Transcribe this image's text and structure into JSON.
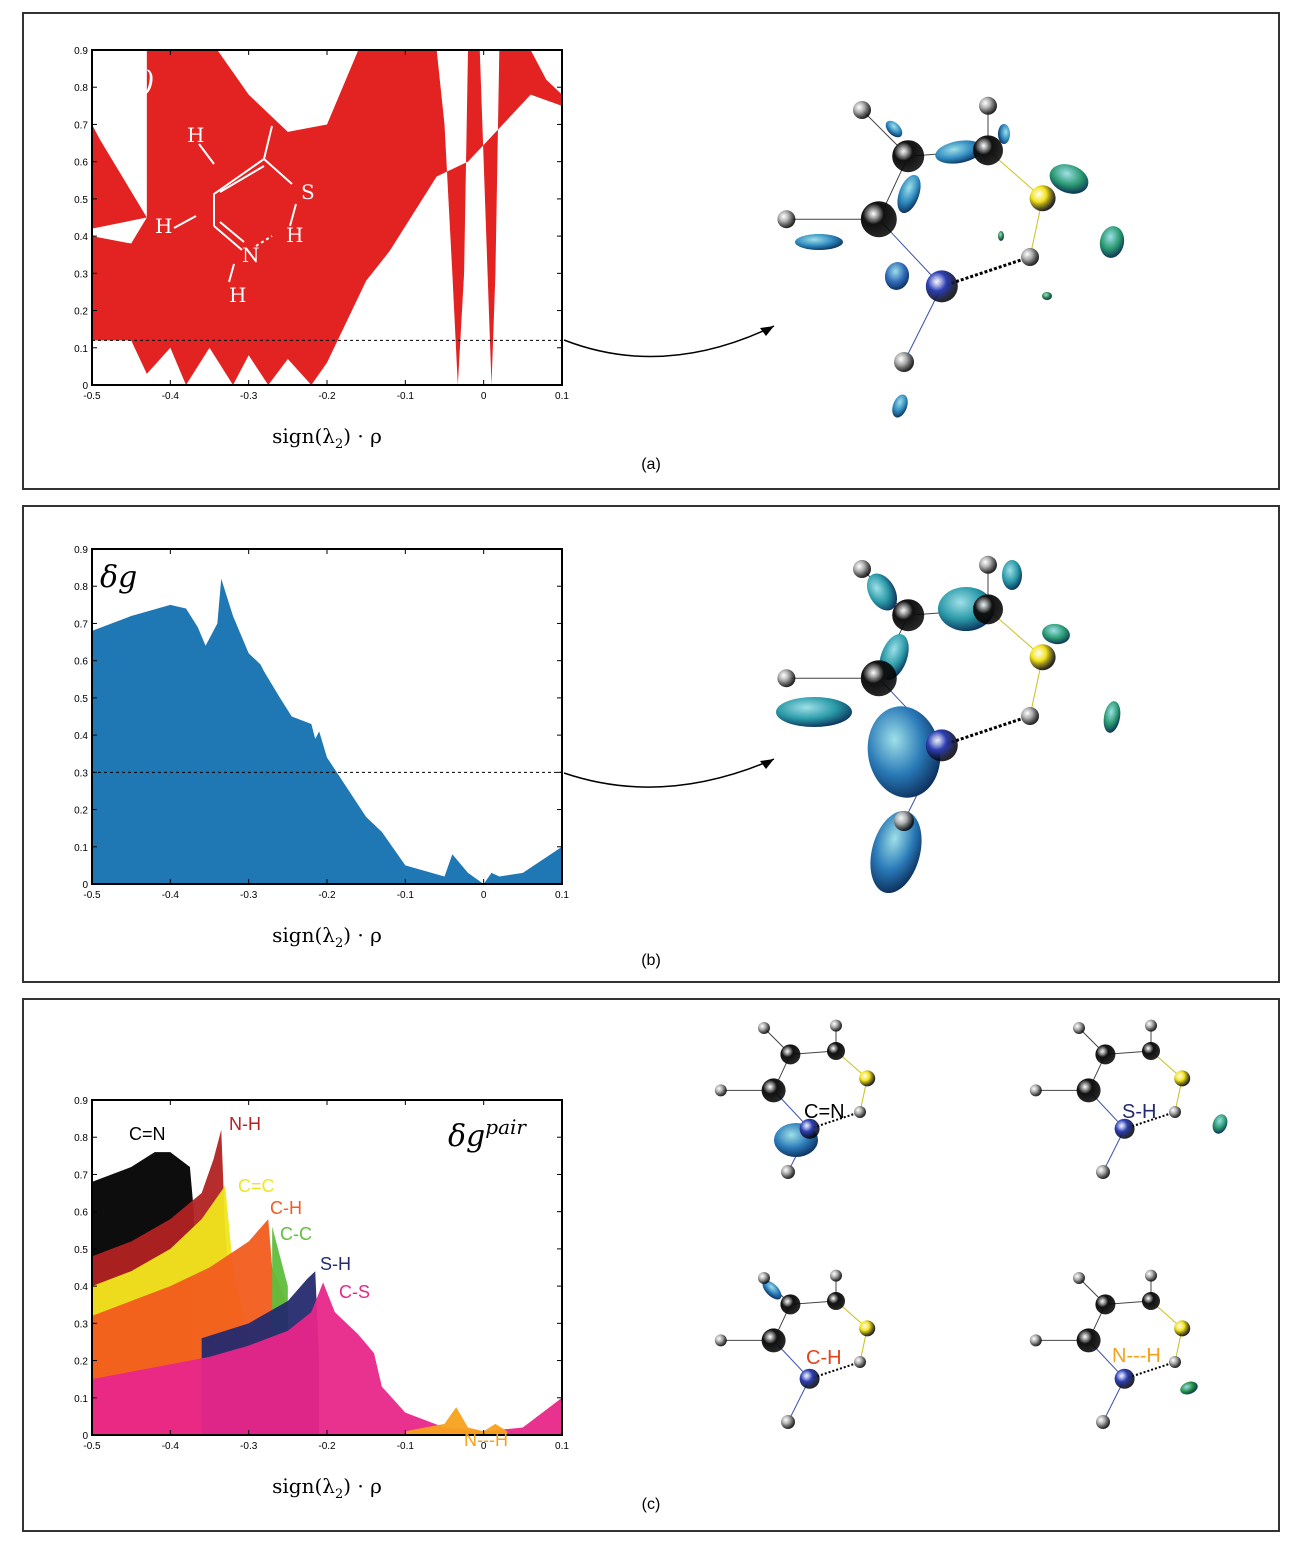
{
  "captions": {
    "a": "(a)",
    "b": "(b)",
    "c": "(c)"
  },
  "axis": {
    "xlabel": "sign(λ",
    "xlabel_sub": "2",
    "xlabel_tail": ") · ρ",
    "xticks": [
      "-0.5",
      "-0.4",
      "-0.3",
      "-0.2",
      "-0.1",
      "0",
      "0.1"
    ],
    "yticks": [
      "0",
      "0.1",
      "0.2",
      "0.3",
      "0.4",
      "0.5",
      "0.6",
      "0.7",
      "0.8",
      "0.9"
    ],
    "xlim": [
      -0.5,
      0.1
    ],
    "ylim": [
      0,
      0.9
    ]
  },
  "chart_data": [
    {
      "type": "scatter",
      "panel": "a",
      "title": "s(ρ)",
      "color": "#e32222",
      "threshold": 0.12,
      "inset_molecule_labels": [
        "H",
        "H",
        "S",
        "H",
        "N",
        "H",
        "H"
      ],
      "spikes_x": [
        -0.035,
        0.01
      ]
    },
    {
      "type": "area",
      "panel": "b",
      "title": "δg",
      "color": "#1f78b4",
      "threshold": 0.3,
      "envelope": {
        "x": [
          -0.5,
          -0.45,
          -0.4,
          -0.38,
          -0.365,
          -0.355,
          -0.34,
          -0.335,
          -0.32,
          -0.3,
          -0.285,
          -0.28,
          -0.26,
          -0.245,
          -0.22,
          -0.215,
          -0.21,
          -0.2,
          -0.15,
          -0.13,
          -0.1,
          -0.05,
          -0.04,
          -0.02,
          0.0,
          0.01,
          0.02,
          0.05,
          0.1
        ],
        "y": [
          0.68,
          0.72,
          0.75,
          0.74,
          0.69,
          0.64,
          0.7,
          0.82,
          0.72,
          0.62,
          0.59,
          0.57,
          0.5,
          0.45,
          0.43,
          0.39,
          0.41,
          0.34,
          0.18,
          0.14,
          0.05,
          0.02,
          0.08,
          0.03,
          0.0,
          0.03,
          0.02,
          0.03,
          0.1
        ]
      }
    },
    {
      "type": "area",
      "panel": "c",
      "title": "δg",
      "title_sup": "pair",
      "series": [
        {
          "name": "C=N",
          "color": "#000000",
          "x": [
            -0.5,
            -0.45,
            -0.42,
            -0.4,
            -0.375,
            -0.37
          ],
          "y": [
            0.68,
            0.72,
            0.76,
            0.76,
            0.72,
            0.6
          ]
        },
        {
          "name": "N-H",
          "color": "#b22222",
          "x": [
            -0.5,
            -0.45,
            -0.4,
            -0.36,
            -0.345,
            -0.335,
            -0.33,
            -0.32
          ],
          "y": [
            0.48,
            0.52,
            0.58,
            0.65,
            0.74,
            0.82,
            0.55,
            0.3
          ]
        },
        {
          "name": "C=C",
          "color": "#f0e61e",
          "x": [
            -0.5,
            -0.45,
            -0.4,
            -0.36,
            -0.33,
            -0.32,
            -0.3
          ],
          "y": [
            0.4,
            0.44,
            0.5,
            0.58,
            0.67,
            0.45,
            0.25
          ]
        },
        {
          "name": "C-H",
          "color": "#f25c1e",
          "x": [
            -0.5,
            -0.45,
            -0.4,
            -0.35,
            -0.3,
            -0.275,
            -0.27,
            -0.25
          ],
          "y": [
            0.32,
            0.36,
            0.4,
            0.45,
            0.52,
            0.58,
            0.45,
            0.35
          ]
        },
        {
          "name": "C-C",
          "color": "#5fbe3c",
          "x": [
            -0.27,
            -0.26,
            -0.25
          ],
          "y": [
            0.56,
            0.48,
            0.4
          ]
        },
        {
          "name": "S-H",
          "color": "#242a6e",
          "x": [
            -0.36,
            -0.3,
            -0.25,
            -0.225,
            -0.215,
            -0.21
          ],
          "y": [
            0.26,
            0.3,
            0.36,
            0.42,
            0.44,
            0.2
          ]
        },
        {
          "name": "C-S",
          "color": "#e8268a",
          "x": [
            -0.5,
            -0.45,
            -0.4,
            -0.35,
            -0.3,
            -0.25,
            -0.22,
            -0.205,
            -0.19,
            -0.16,
            -0.14,
            -0.13,
            -0.1,
            -0.05,
            0.0,
            0.05,
            0.1
          ],
          "y": [
            0.15,
            0.17,
            0.19,
            0.21,
            0.24,
            0.28,
            0.33,
            0.41,
            0.33,
            0.27,
            0.22,
            0.13,
            0.06,
            0.02,
            0.01,
            0.02,
            0.1
          ]
        },
        {
          "name": "N---H",
          "color": "#f5a21b",
          "x": [
            -0.1,
            -0.05,
            -0.035,
            -0.02,
            0.0,
            0.015,
            0.03
          ],
          "y": [
            0.01,
            0.03,
            0.075,
            0.02,
            0.01,
            0.03,
            0.01
          ]
        }
      ]
    }
  ],
  "molecule_labels": {
    "c_tl": "C=N",
    "c_tr": "S-H",
    "c_bl": "C-H",
    "c_br": "N---H"
  }
}
